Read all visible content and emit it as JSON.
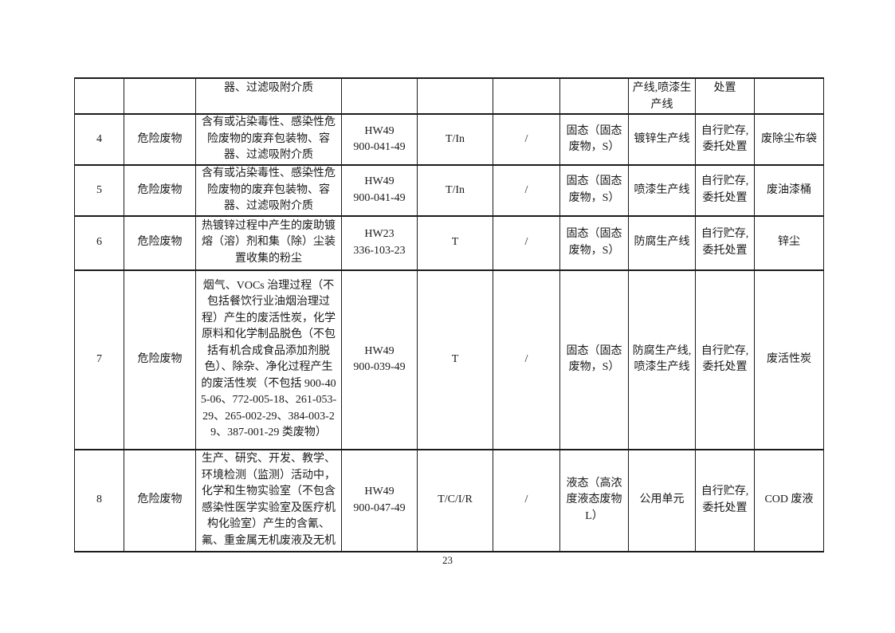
{
  "colors": {
    "background": "#ffffff",
    "text": "#1a1a1a",
    "table_border": "#1b1b1b"
  },
  "table": {
    "continuation_row": {
      "description_tail": "器、过滤吸附介质",
      "source_tail": "产线,喷漆生产线",
      "disposal_tail": "处置"
    },
    "rows": [
      {
        "no": "4",
        "category": "危险废物",
        "description": "含有或沾染毒性、感染性危险废物的废弃包装物、容器、过滤吸附介质",
        "code": "HW49\n900-041-49",
        "hazard_property": "T/In",
        "slash": "/",
        "physical_form": "固态（固态废物，S）",
        "source": "镀锌生产线",
        "disposal": "自行贮存,委托处置",
        "waste_name": "废除尘布袋"
      },
      {
        "no": "5",
        "category": "危险废物",
        "description": "含有或沾染毒性、感染性危险废物的废弃包装物、容器、过滤吸附介质",
        "code": "HW49\n900-041-49",
        "hazard_property": "T/In",
        "slash": "/",
        "physical_form": "固态（固态废物，S）",
        "source": "喷漆生产线",
        "disposal": "自行贮存,委托处置",
        "waste_name": "废油漆桶"
      },
      {
        "no": "6",
        "category": "危险废物",
        "description": "热镀锌过程中产生的废助镀熔（溶）剂和集（除）尘装置收集的粉尘",
        "code": "HW23\n336-103-23",
        "hazard_property": "T",
        "slash": "/",
        "physical_form": "固态（固态废物，S）",
        "source": "防腐生产线",
        "disposal": "自行贮存,委托处置",
        "waste_name": "锌尘"
      },
      {
        "no": "7",
        "category": "危险废物",
        "description": "烟气、VOCs 治理过程（不包括餐饮行业油烟治理过程）产生的废活性炭，化学原料和化学制品脱色（不包括有机合成食品添加剂脱色）、除杂、净化过程产生的废活性炭（不包括 900-405-06、772-005-18、261-053-29、265-002-29、384-003-29、387-001-29 类废物）",
        "code": "HW49\n900-039-49",
        "hazard_property": "T",
        "slash": "/",
        "physical_form": "固态（固态废物，S）",
        "source": "防腐生产线,喷漆生产线",
        "disposal": "自行贮存,委托处置",
        "waste_name": "废活性炭"
      },
      {
        "no": "8",
        "category": "危险废物",
        "description": "生产、研究、开发、教学、环境检测（监测）活动中，化学和生物实验室（不包含感染性医学实验室及医疗机构化验室）产生的含氰、氟、重金属无机废液及无机",
        "code": "HW49\n900-047-49",
        "hazard_property": "T/C/I/R",
        "slash": "/",
        "physical_form": "液态（高浓度液态废物 L）",
        "source": "公用单元",
        "disposal": "自行贮存,委托处置",
        "waste_name": "COD 废液"
      }
    ]
  },
  "footer": {
    "page_number": "23"
  }
}
